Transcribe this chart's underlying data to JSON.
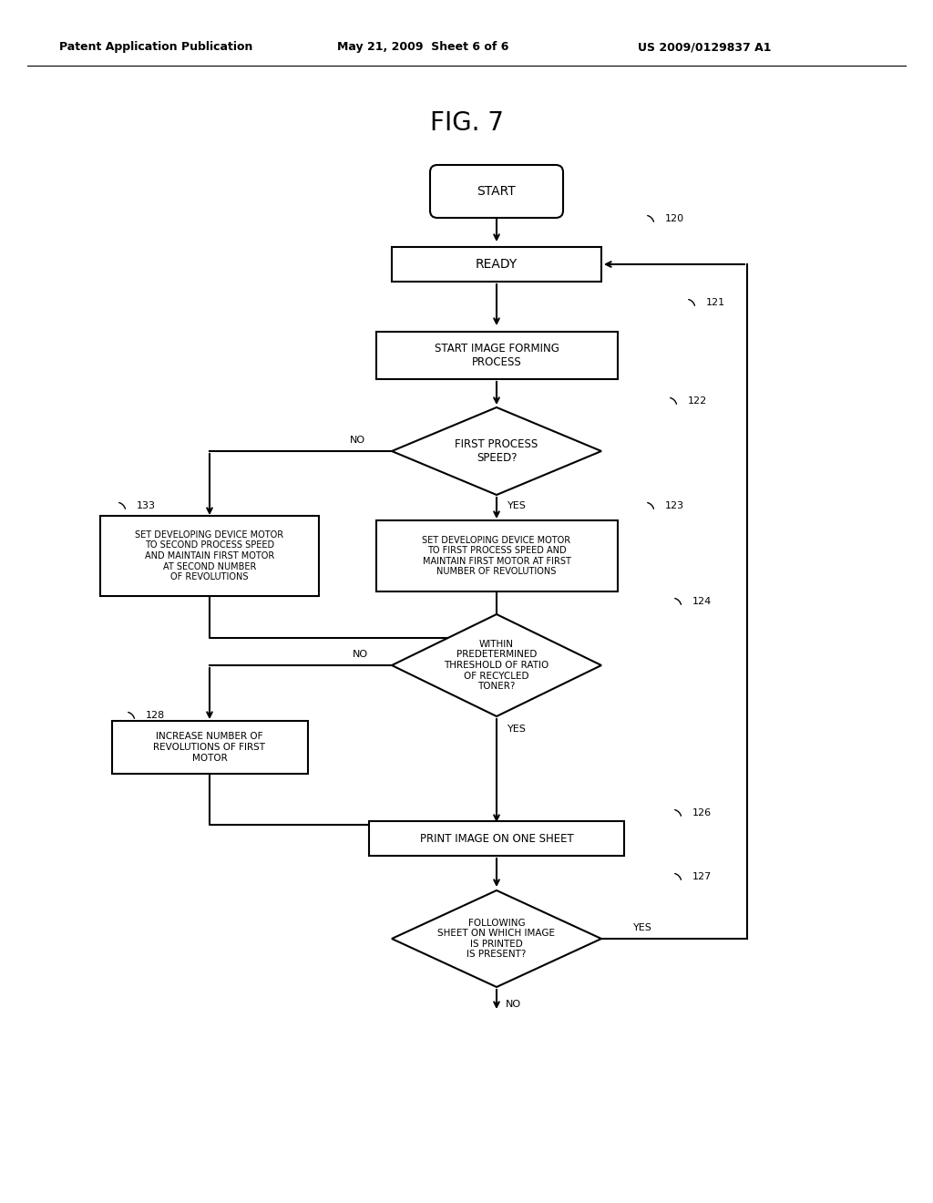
{
  "title": "FIG. 7",
  "header_left": "Patent Application Publication",
  "header_mid": "May 21, 2009  Sheet 6 of 6",
  "header_right": "US 2009/0129837 A1",
  "bg_color": "#ffffff",
  "fig_width": 10.24,
  "fig_height": 13.2
}
